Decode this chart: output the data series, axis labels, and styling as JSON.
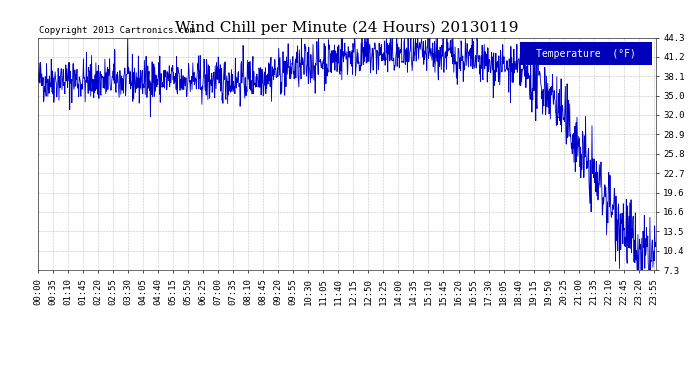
{
  "title": "Wind Chill per Minute (24 Hours) 20130119",
  "copyright": "Copyright 2013 Cartronics.com",
  "legend_label": "Temperature  (°F)",
  "ylabel_ticks": [
    7.3,
    10.4,
    13.5,
    16.6,
    19.6,
    22.7,
    25.8,
    28.9,
    32.0,
    35.0,
    38.1,
    41.2,
    44.3
  ],
  "ylim": [
    7.3,
    44.3
  ],
  "line_color": "#0000cc",
  "background_color": "#ffffff",
  "plot_bg_color": "#ffffff",
  "grid_color": "#bbbbbb",
  "title_fontsize": 11,
  "tick_fontsize": 6.5,
  "copyright_fontsize": 6.5,
  "legend_bg": "#0000bb",
  "legend_fg": "#ffffff",
  "legend_fontsize": 7
}
